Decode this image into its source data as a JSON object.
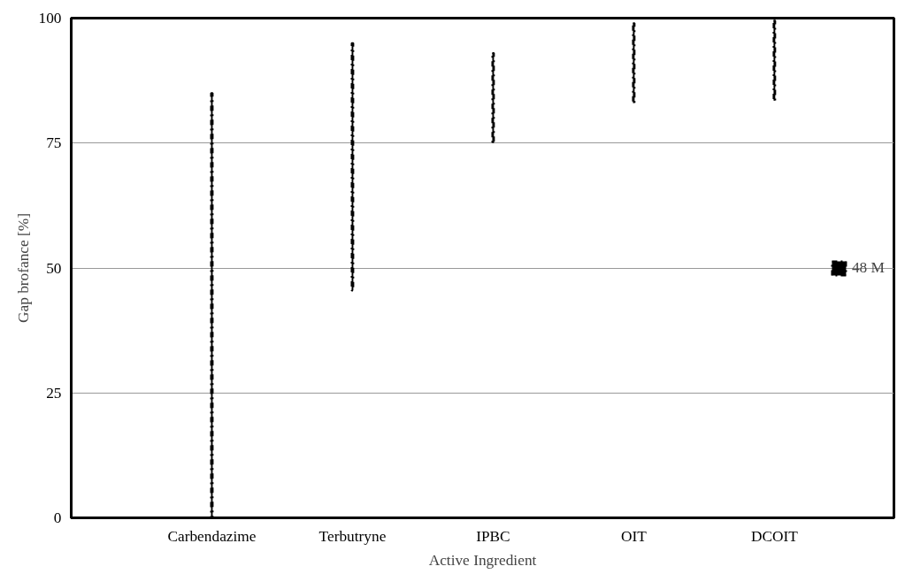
{
  "chart_data": {
    "type": "bar",
    "xlabel": "Active Ingredient",
    "ylabel": "Gap brofance [%]",
    "categories": [
      "Carbendazime",
      "Terbutryne",
      "IPBC",
      "OIT",
      "DCOIT"
    ],
    "series": [
      {
        "name": "48 M",
        "color": "#000000",
        "values": [
          85,
          49.5,
          18,
          16,
          16
        ],
        "base": [
          0,
          45.5,
          75,
          83,
          83.5
        ]
      }
    ],
    "ylim": [
      0,
      100
    ],
    "yticks": [
      0,
      25,
      50,
      75,
      100
    ],
    "grid": "y",
    "legend": "right"
  }
}
